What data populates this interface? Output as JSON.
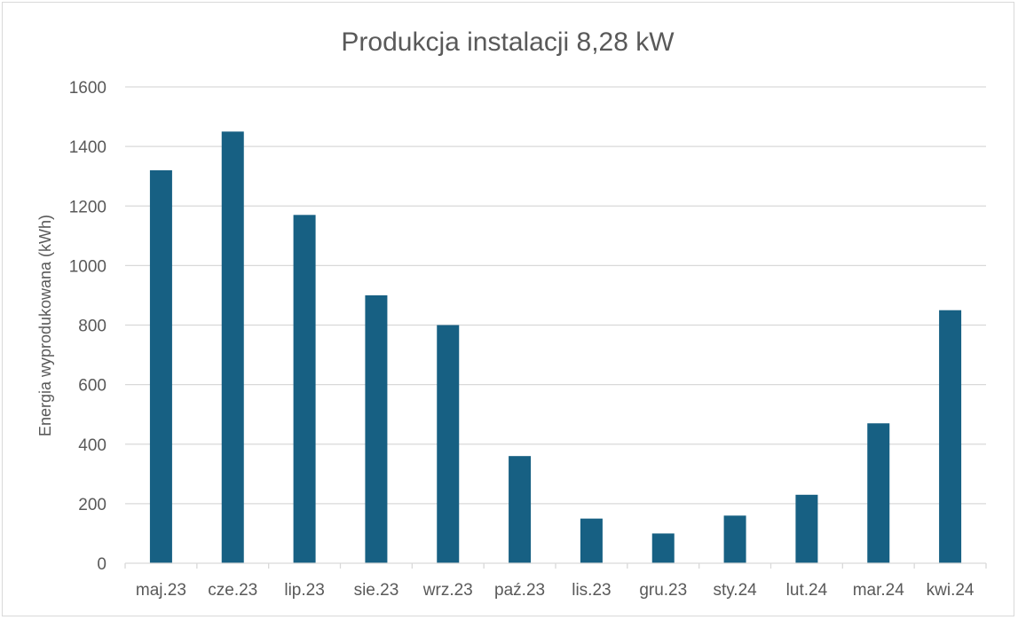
{
  "chart_data": {
    "type": "bar",
    "title": "Produkcja instalacji 8,28 kW",
    "xlabel": "",
    "ylabel": "Energia wyprodukowana (kWh)",
    "categories": [
      "maj.23",
      "cze.23",
      "lip.23",
      "sie.23",
      "wrz.23",
      "paź.23",
      "lis.23",
      "gru.23",
      "sty.24",
      "lut.24",
      "mar.24",
      "kwi.24"
    ],
    "values": [
      1320,
      1450,
      1170,
      900,
      800,
      360,
      150,
      100,
      160,
      230,
      470,
      850
    ],
    "ylim": [
      0,
      1600
    ],
    "yticks": [
      0,
      200,
      400,
      600,
      800,
      1000,
      1200,
      1400,
      1600
    ],
    "grid": true,
    "legend": "none",
    "colors": {
      "bar": "#176083",
      "grid": "#d9d9d9",
      "text": "#595959"
    }
  }
}
